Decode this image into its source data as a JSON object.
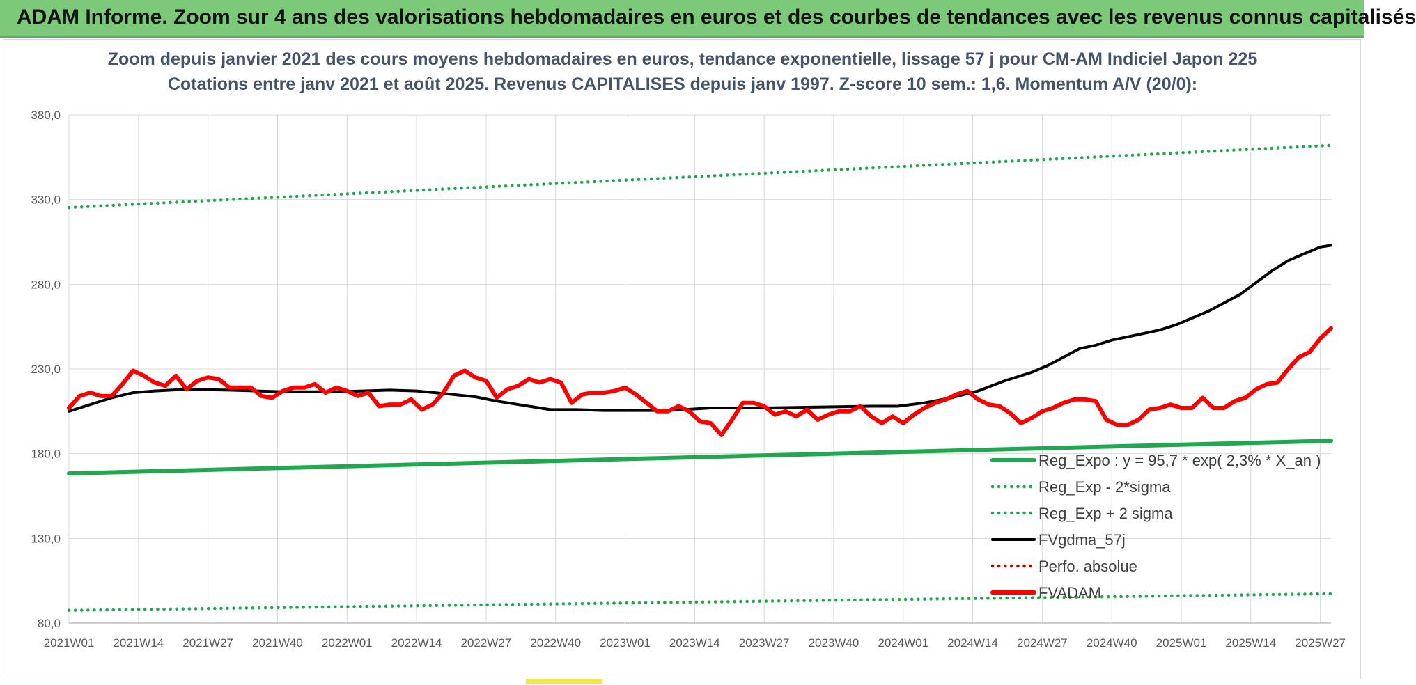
{
  "banner": {
    "title": "ADAM Informe. Zoom sur 4 ans des valorisations hebdomadaires en euros et des courbes de tendances avec les revenus connus capitalisés",
    "color": "#7dc97a"
  },
  "chart_data": {
    "type": "line",
    "title": "Zoom depuis janvier 2021 des cours moyens hebdomadaires en euros, tendance exponentielle, lissage 57 j pour CM-AM Indiciel Japon 225",
    "subtitle": "Cotations entre janv 2021 et août 2025. Revenus CAPITALISES depuis janv 1997. Z-score 10 sem.: 1,6. Momentum A/V (20/0):",
    "xlabel": "",
    "ylabel": "",
    "ylim": [
      80,
      380
    ],
    "yticks": [
      "80,0",
      "130,0",
      "180,0",
      "230,0",
      "280,0",
      "330,0",
      "380,0"
    ],
    "x_tick_labels": [
      "2021W01",
      "2021W14",
      "2021W27",
      "2021W40",
      "2022W01",
      "2022W14",
      "2022W27",
      "2022W40",
      "2023W01",
      "2023W14",
      "2023W27",
      "2023W40",
      "2024W01",
      "2024W14",
      "2024W27",
      "2024W40",
      "2025W01",
      "2025W14",
      "2025W27"
    ],
    "week_count": 237,
    "grid": "vertical and horizontal",
    "legend_position": "bottom-right",
    "series": [
      {
        "name": "Reg_Expo : y = 95,7 * exp( 2,3% *  X_an )",
        "style": "solid-thick",
        "color": "#1fa84f",
        "points": [
          [
            0,
            168.3
          ],
          [
            236,
            187.6
          ]
        ]
      },
      {
        "name": "Reg_Exp - 2*sigma",
        "style": "dotted",
        "color": "#1fa84f",
        "points": [
          [
            0,
            87.5
          ],
          [
            236,
            97.3
          ]
        ]
      },
      {
        "name": "Reg_Exp + 2 sigma",
        "style": "dotted",
        "color": "#1fa84f",
        "points": [
          [
            0,
            325.3
          ],
          [
            236,
            362.0
          ]
        ]
      },
      {
        "name": "FVgdma_57j",
        "style": "solid",
        "color": "#000000",
        "points": [
          [
            0,
            205
          ],
          [
            4,
            209
          ],
          [
            8,
            213
          ],
          [
            12,
            216
          ],
          [
            16,
            217
          ],
          [
            22,
            218
          ],
          [
            30,
            217.5
          ],
          [
            40,
            216.5
          ],
          [
            45,
            216.5
          ],
          [
            50,
            216.5
          ],
          [
            55,
            217
          ],
          [
            60,
            217.5
          ],
          [
            65,
            217
          ],
          [
            70,
            215.5
          ],
          [
            76,
            213.5
          ],
          [
            80,
            211
          ],
          [
            85,
            208.5
          ],
          [
            90,
            206
          ],
          [
            95,
            206
          ],
          [
            100,
            205.5
          ],
          [
            105,
            205.5
          ],
          [
            110,
            205.5
          ],
          [
            115,
            206
          ],
          [
            120,
            207
          ],
          [
            130,
            207
          ],
          [
            140,
            207.5
          ],
          [
            150,
            208
          ],
          [
            155,
            208
          ],
          [
            160,
            210
          ],
          [
            165,
            213
          ],
          [
            170,
            217
          ],
          [
            175,
            223
          ],
          [
            180,
            228
          ],
          [
            183,
            232
          ],
          [
            186,
            237
          ],
          [
            189,
            242
          ],
          [
            192,
            244
          ],
          [
            195,
            247
          ],
          [
            198,
            249
          ],
          [
            201,
            251
          ],
          [
            204,
            253
          ],
          [
            207,
            256
          ],
          [
            210,
            260
          ],
          [
            213,
            264
          ],
          [
            216,
            269
          ],
          [
            219,
            274
          ],
          [
            222,
            281
          ],
          [
            225,
            288
          ],
          [
            228,
            294
          ],
          [
            231,
            298
          ],
          [
            234,
            302
          ],
          [
            236,
            303
          ]
        ]
      },
      {
        "name": "Perfo. absolue",
        "style": "dotted",
        "color": "#c00000",
        "points": []
      },
      {
        "name": "FVADAM",
        "style": "solid-thick",
        "color": "#ff0000",
        "points": [
          [
            0,
            207
          ],
          [
            2,
            214
          ],
          [
            4,
            216
          ],
          [
            6,
            214
          ],
          [
            8,
            214
          ],
          [
            10,
            221
          ],
          [
            12,
            229
          ],
          [
            14,
            226
          ],
          [
            16,
            222
          ],
          [
            18,
            220
          ],
          [
            20,
            226
          ],
          [
            22,
            218
          ],
          [
            24,
            223
          ],
          [
            26,
            225
          ],
          [
            28,
            224
          ],
          [
            30,
            219
          ],
          [
            32,
            219
          ],
          [
            34,
            219
          ],
          [
            36,
            214
          ],
          [
            38,
            213
          ],
          [
            40,
            217
          ],
          [
            42,
            219
          ],
          [
            44,
            219
          ],
          [
            46,
            221
          ],
          [
            48,
            216
          ],
          [
            50,
            219
          ],
          [
            52,
            217
          ],
          [
            54,
            214
          ],
          [
            56,
            216
          ],
          [
            58,
            208
          ],
          [
            60,
            209
          ],
          [
            62,
            209
          ],
          [
            64,
            212
          ],
          [
            66,
            206
          ],
          [
            68,
            209
          ],
          [
            70,
            216
          ],
          [
            72,
            226
          ],
          [
            74,
            229
          ],
          [
            76,
            225
          ],
          [
            78,
            223
          ],
          [
            80,
            213
          ],
          [
            82,
            218
          ],
          [
            84,
            220
          ],
          [
            86,
            224
          ],
          [
            88,
            222
          ],
          [
            90,
            224
          ],
          [
            92,
            222
          ],
          [
            94,
            210
          ],
          [
            96,
            215
          ],
          [
            98,
            216
          ],
          [
            100,
            216
          ],
          [
            102,
            217
          ],
          [
            104,
            219
          ],
          [
            106,
            215
          ],
          [
            108,
            210
          ],
          [
            110,
            205
          ],
          [
            112,
            205
          ],
          [
            114,
            208
          ],
          [
            116,
            205
          ],
          [
            118,
            199
          ],
          [
            120,
            198
          ],
          [
            122,
            191
          ],
          [
            124,
            200
          ],
          [
            126,
            210
          ],
          [
            128,
            210
          ],
          [
            130,
            208
          ],
          [
            132,
            203
          ],
          [
            134,
            205
          ],
          [
            136,
            202
          ],
          [
            138,
            206
          ],
          [
            140,
            200
          ],
          [
            142,
            203
          ],
          [
            144,
            205
          ],
          [
            146,
            205
          ],
          [
            148,
            208
          ],
          [
            150,
            202
          ],
          [
            152,
            198
          ],
          [
            154,
            202
          ],
          [
            156,
            198
          ],
          [
            158,
            203
          ],
          [
            160,
            207
          ],
          [
            162,
            210
          ],
          [
            164,
            212
          ],
          [
            166,
            215
          ],
          [
            168,
            217
          ],
          [
            170,
            212
          ],
          [
            172,
            209
          ],
          [
            174,
            208
          ],
          [
            176,
            204
          ],
          [
            178,
            198
          ],
          [
            180,
            201
          ],
          [
            182,
            205
          ],
          [
            184,
            207
          ],
          [
            186,
            210
          ],
          [
            188,
            212
          ],
          [
            190,
            212
          ],
          [
            192,
            211
          ],
          [
            194,
            200
          ],
          [
            196,
            197
          ],
          [
            198,
            197
          ],
          [
            200,
            200
          ],
          [
            202,
            206
          ],
          [
            204,
            207
          ],
          [
            206,
            209
          ],
          [
            208,
            207
          ],
          [
            210,
            207
          ],
          [
            212,
            213
          ],
          [
            214,
            207
          ],
          [
            216,
            207
          ],
          [
            218,
            211
          ],
          [
            220,
            213
          ],
          [
            222,
            218
          ],
          [
            224,
            221
          ],
          [
            226,
            222
          ],
          [
            228,
            230
          ],
          [
            230,
            237
          ],
          [
            232,
            240
          ],
          [
            234,
            248
          ],
          [
            236,
            254
          ]
        ]
      }
    ]
  }
}
